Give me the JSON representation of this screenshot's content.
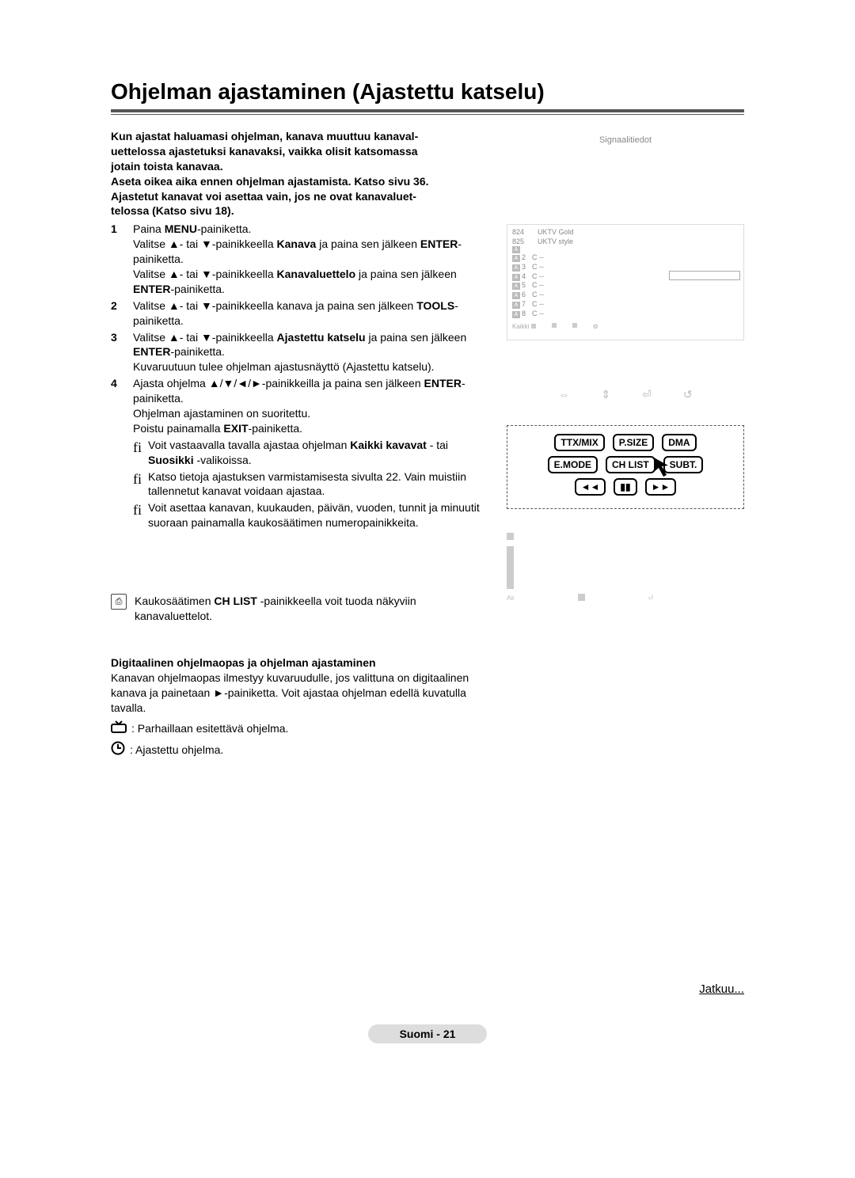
{
  "title": "Ohjelman ajastaminen (Ajastettu katselu)",
  "intro_lines": [
    "Kun ajastat haluamasi ohjelman, kanava muuttuu kanaval-",
    "uettelossa ajastetuksi kanavaksi, vaikka olisit katsomassa",
    "jotain toista kanavaa.",
    "Aseta oikea aika ennen ohjelman ajastamista. Katso sivu 36.",
    "Ajastetut kanavat voi asettaa vain, jos ne ovat kanavaluet-",
    "telossa (Katso sivu 18)."
  ],
  "steps": [
    {
      "num": "1",
      "html": "Paina <b>MENU</b>-painiketta.<br>Valitse ▲- tai ▼-painikkeella <b>Kanava</b> ja paina sen jälkeen <b>ENTER</b>-painiketta.<br>Valitse ▲- tai ▼-painikkeella <b>Kanavaluettelo</b> ja paina sen jälkeen <b>ENTER</b>-painiketta."
    },
    {
      "num": "2",
      "html": "Valitse ▲- tai ▼-painikkeella kanava ja paina sen jälkeen <b>TOOLS</b>-painiketta."
    },
    {
      "num": "3",
      "html": "Valitse ▲- tai ▼-painikkeella <b>Ajastettu katselu</b> ja paina sen jälkeen <b>ENTER</b>-painiketta.<br>Kuvaruutuun tulee ohjelman ajastusnäyttö (Ajastettu katselu)."
    },
    {
      "num": "4",
      "html": "Ajasta ohjelma ▲/▼/◄/►-painikkeilla ja paina sen jälkeen <b>ENTER</b>-painiketta.<br>Ohjelman ajastaminen on suoritettu.<br>Poistu painamalla <b>EXIT</b>-painiketta."
    }
  ],
  "finotes": [
    "Voit vastaavalla tavalla ajastaa ohjelman <b>Kaikki kavavat</b> - tai <b>Suosikki</b> -valikoissa.",
    "Katso tietoja ajastuksen varmistamisesta sivulta 22. Vain muistiin tallennetut kanavat voidaan ajastaa.",
    "Voit asettaa kanavan, kuukauden, päivän, vuoden, tunnit ja minuutit suoraan painamalla kaukosäätimen numeropainikkeita."
  ],
  "chlist_text_pre": "Kaukosäätimen ",
  "chlist_text_bold": "CH LIST",
  "chlist_text_post": " -painikkeella voit tuoda näkyviin kanavaluettelot.",
  "digital": {
    "subhead": "Digitaalinen ohjelmaopas ja ohjelman ajastaminen",
    "body": "Kanavan ohjelmaopas ilmestyy kuvaruudulle, jos valittuna on digitaalinen kanava ja painetaan ►-painiketta. Voit ajastaa ohjelman edellä kuvatulla tavalla."
  },
  "legend": {
    "now": ": Parhaillaan esitettävä ohjelma.",
    "timer": ": Ajastettu ohjelma."
  },
  "signal_label": "Signaalitiedot",
  "channel_mock": {
    "rows_with_name": [
      {
        "num": "824",
        "name": "UKTV Gold"
      },
      {
        "num": "825",
        "name": "UKTV style"
      }
    ],
    "rows_generic": [
      {
        "num": "2",
        "name": "C --"
      },
      {
        "num": "3",
        "name": "C --"
      },
      {
        "num": "4",
        "name": "C --"
      },
      {
        "num": "5",
        "name": "C --"
      },
      {
        "num": "6",
        "name": "C --"
      },
      {
        "num": "7",
        "name": "C --"
      },
      {
        "num": "8",
        "name": "C --"
      }
    ],
    "footer_left": "Kaikki",
    "a_label": "A"
  },
  "remote": {
    "row1": [
      "TTX/MIX",
      "P.SIZE",
      "DMA"
    ],
    "row2": [
      "E.MODE",
      "CH LIST",
      "SUBT."
    ]
  },
  "small_mock": {
    "footer_left": "Air"
  },
  "continues": "Jatkuu...",
  "footer": "Suomi - 21",
  "fi_symbol": "fi"
}
